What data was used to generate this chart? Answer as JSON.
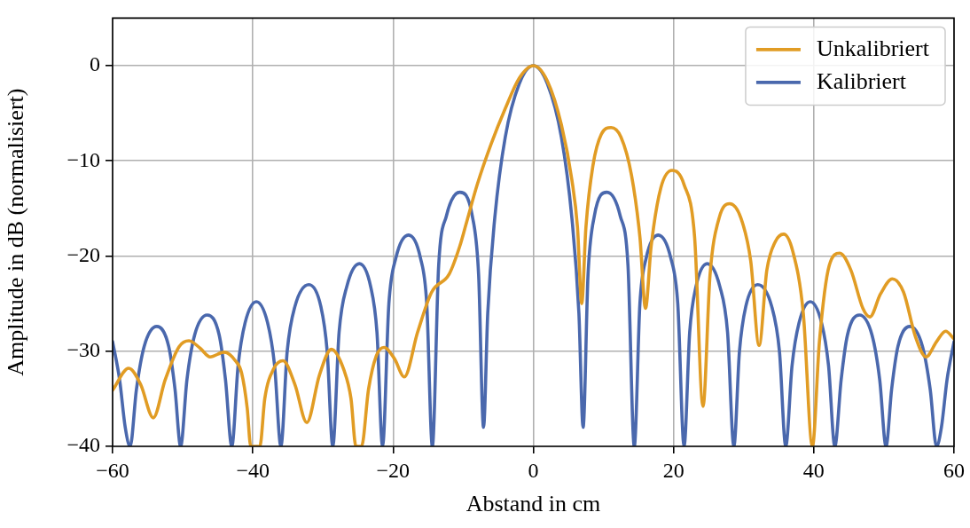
{
  "chart_data": {
    "type": "line",
    "xlabel": "Abstand in cm",
    "ylabel": "Amplitude in dB (normalisiert)",
    "xlim": [
      -60,
      60
    ],
    "ylim": [
      -40,
      5
    ],
    "xticks": [
      {
        "value": -60,
        "label": "−60"
      },
      {
        "value": -40,
        "label": "−40"
      },
      {
        "value": -20,
        "label": "−20"
      },
      0,
      20,
      40,
      60
    ],
    "yticks": [
      {
        "value": -40,
        "label": "−40"
      },
      {
        "value": -30,
        "label": "−30"
      },
      {
        "value": -20,
        "label": "−20"
      },
      {
        "value": -10,
        "label": "−10"
      },
      0
    ],
    "grid": true,
    "legend": "top right",
    "series": [
      {
        "name": "Unkalibriert",
        "color": "#e19c24",
        "x": [
          -60,
          -57.7,
          -56,
          -54.2,
          -52.5,
          -50.5,
          -49.1,
          -47.5,
          -46.1,
          -44.1,
          -42.5,
          -41.6,
          -40.8,
          -40.3,
          -39,
          -38.3,
          -37,
          -35.7,
          -34,
          -32.3,
          -30.5,
          -28.8,
          -27,
          -26,
          -25.3,
          -24.5,
          -23.5,
          -22.4,
          -21.3,
          -19.8,
          -18.4,
          -16.5,
          -14.5,
          -12,
          -10.5,
          -9.5,
          -8,
          -6,
          -4,
          -2,
          0,
          2,
          4,
          5.5,
          6.3,
          6.9,
          7.5,
          8.5,
          9.7,
          11.1,
          12.5,
          14,
          15.2,
          16,
          16.8,
          18.2,
          19.8,
          21.5,
          23,
          24.2,
          25.2,
          26.5,
          28,
          29.6,
          31,
          32.2,
          33.3,
          34.5,
          35.7,
          37,
          38.5,
          39.8,
          40.8,
          42.2,
          43.7,
          45.3,
          47,
          48,
          49.5,
          51.2,
          52.8,
          54.5,
          56,
          57.5,
          58.8,
          60
        ],
        "values": [
          -34.1,
          -31.8,
          -33.5,
          -37,
          -33,
          -29.5,
          -28.9,
          -29.7,
          -30.6,
          -30.1,
          -31,
          -32.3,
          -36,
          -40,
          -40,
          -35,
          -31.8,
          -31,
          -33.5,
          -37.5,
          -32.5,
          -29.8,
          -32,
          -35,
          -40,
          -40,
          -34,
          -30.5,
          -29.6,
          -30.8,
          -32.7,
          -28,
          -23.8,
          -21.9,
          -19,
          -16.4,
          -12.5,
          -8.2,
          -4.5,
          -1.3,
          0,
          -1.6,
          -6.2,
          -12,
          -17,
          -25,
          -17,
          -10.5,
          -7.2,
          -6.5,
          -7.5,
          -11.5,
          -18,
          -25.5,
          -19,
          -12.8,
          -11,
          -12.5,
          -18,
          -35.8,
          -22,
          -16,
          -14.5,
          -16,
          -20.5,
          -29.4,
          -21.5,
          -18.5,
          -17.7,
          -19.5,
          -26,
          -40,
          -29,
          -21,
          -19.7,
          -21.5,
          -25.5,
          -26.4,
          -24,
          -22.4,
          -23.8,
          -28.5,
          -30.6,
          -29,
          -27.9,
          -28.7
        ]
      },
      {
        "name": "Kalibriert",
        "color": "#4a68ad",
        "x": [
          -60,
          -59,
          -58.2,
          -57.5,
          -56.6,
          -55.5,
          -53.7,
          -52,
          -51.1,
          -50.3,
          -49.4,
          -48.3,
          -46.5,
          -44.8,
          -43.9,
          -43,
          -42.1,
          -41.1,
          -39.5,
          -37.9,
          -36.9,
          -36,
          -35.1,
          -34,
          -32,
          -30.3,
          -29.4,
          -28.6,
          -27.7,
          -26.6,
          -24.8,
          -23.2,
          -22.3,
          -21.5,
          -20.6,
          -19.6,
          -17.8,
          -16.1,
          -15.2,
          -14.4,
          -13.5,
          -12.4,
          -10.5,
          -8.7,
          -7.8,
          -7.1,
          -6.5,
          -5.5,
          -4,
          -2,
          0,
          2,
          4,
          5.5,
          6.5,
          7.1,
          7.8,
          8.7,
          10.5,
          12.4,
          13.5,
          14.4,
          15.2,
          16.1,
          17.8,
          19.6,
          20.6,
          21.5,
          22.3,
          23.2,
          24.8,
          26.6,
          27.7,
          28.6,
          29.4,
          30.3,
          32,
          34,
          35.1,
          36,
          36.9,
          37.9,
          39.5,
          41.1,
          42.1,
          43,
          43.9,
          44.8,
          46.5,
          48.3,
          49.4,
          50.3,
          51.1,
          52,
          53.7,
          55.5,
          56.6,
          57.5,
          58.2,
          59,
          60
        ],
        "values": [
          -29,
          -33,
          -38,
          -40,
          -34,
          -29.5,
          -27.4,
          -29.5,
          -34,
          -40,
          -33,
          -28.3,
          -26.2,
          -28.3,
          -33,
          -40,
          -31.5,
          -27,
          -24.8,
          -27,
          -31.5,
          -40,
          -30,
          -25.3,
          -23,
          -25.3,
          -30,
          -40,
          -28,
          -23.2,
          -20.8,
          -23.2,
          -28,
          -40,
          -25,
          -20.2,
          -17.8,
          -20.2,
          -25,
          -40,
          -21,
          -15.8,
          -13.3,
          -15.8,
          -22,
          -38,
          -26,
          -16,
          -7.5,
          -1.9,
          0,
          -1.9,
          -7.5,
          -16,
          -26,
          -38,
          -22,
          -15.8,
          -13.3,
          -15.8,
          -21,
          -40,
          -25,
          -20.2,
          -17.8,
          -20.2,
          -25,
          -40,
          -28,
          -23.2,
          -20.8,
          -23.2,
          -28,
          -40,
          -30,
          -25.3,
          -23,
          -25.3,
          -30,
          -40,
          -31.5,
          -27,
          -24.8,
          -27,
          -31.5,
          -40,
          -33,
          -28.3,
          -26.2,
          -28.3,
          -33,
          -40,
          -34,
          -29.5,
          -27.4,
          -29.5,
          -34,
          -40,
          -38,
          -33,
          -29
        ]
      }
    ]
  }
}
